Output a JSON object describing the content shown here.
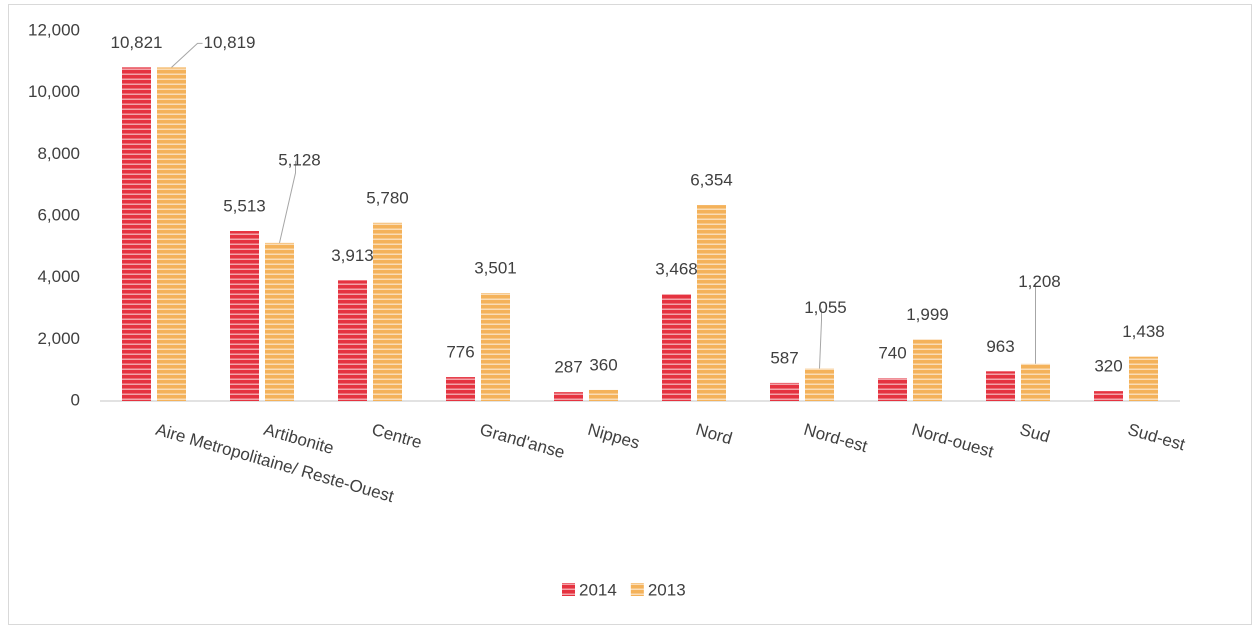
{
  "chart_data": {
    "type": "bar",
    "categories": [
      "Aire Metropolitaine/ Reste-Ouest",
      "Artibonite",
      "Centre",
      "Grand'anse",
      "Nippes",
      "Nord",
      "Nord-est",
      "Nord-ouest",
      "Sud",
      "Sud-est"
    ],
    "series": [
      {
        "name": "2014",
        "color": "#e53340",
        "values": [
          10821,
          5513,
          3913,
          776,
          287,
          3468,
          587,
          740,
          963,
          320
        ],
        "value_labels": [
          "10,821",
          "5,513",
          "3,913",
          "776",
          "287",
          "3,468",
          "587",
          "740",
          "963",
          "320"
        ]
      },
      {
        "name": "2013",
        "color": "#f4b25a",
        "values": [
          10819,
          5128,
          5780,
          3501,
          360,
          6354,
          1055,
          1999,
          1208,
          1438
        ],
        "value_labels": [
          "10,819",
          "5,128",
          "5,780",
          "3,501",
          "360",
          "6,354",
          "1,055",
          "1,999",
          "1,208",
          "1,438"
        ]
      }
    ],
    "ylim": [
      0,
      12000
    ],
    "yticks": [
      0,
      {
        "value": 2000,
        "label": "2,000"
      },
      {
        "value": 4000,
        "label": "4,000"
      },
      {
        "value": 6000,
        "label": "6,000"
      },
      {
        "value": 8000,
        "label": "8,000"
      },
      {
        "value": 10000,
        "label": "10,000"
      },
      {
        "value": 12000,
        "label": "12,000"
      }
    ],
    "grid": false,
    "legend": "bottom"
  }
}
